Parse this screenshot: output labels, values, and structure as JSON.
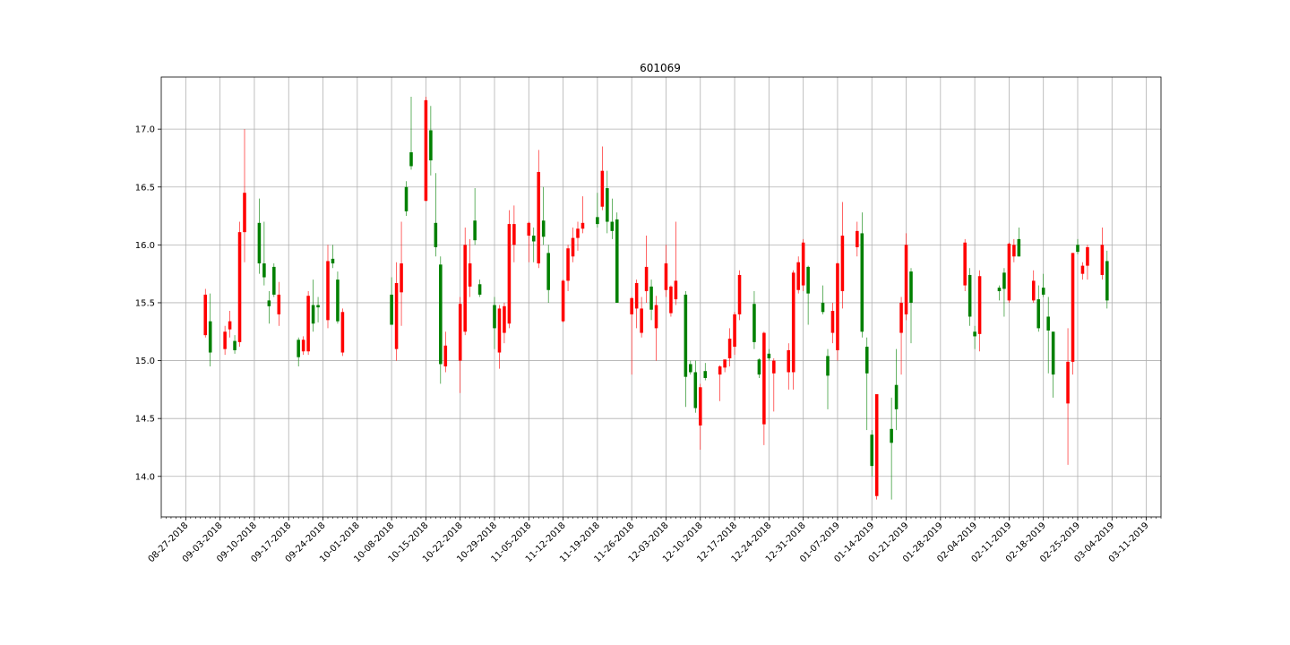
{
  "chart_data": {
    "type": "candlestick",
    "title": "601069",
    "xlabel": "",
    "ylabel": "",
    "grid": true,
    "legend": "none",
    "colors": {
      "up": "#ff0000",
      "down": "#008000",
      "grid": "#b0b0b0",
      "axis": "#000000"
    },
    "xlim": [
      "2018-08-22",
      "2019-03-14"
    ],
    "ylim": [
      13.65,
      17.45
    ],
    "y_ticks": [
      14.0,
      14.5,
      15.0,
      15.5,
      16.0,
      16.5,
      17.0
    ],
    "y_tick_labels": [
      "14.0",
      "14.5",
      "15.0",
      "15.5",
      "16.0",
      "16.5",
      "17.0"
    ],
    "x_ticks": [
      "2018-08-27",
      "2018-09-03",
      "2018-09-10",
      "2018-09-17",
      "2018-09-24",
      "2018-10-01",
      "2018-10-08",
      "2018-10-15",
      "2018-10-22",
      "2018-10-29",
      "2018-11-05",
      "2018-11-12",
      "2018-11-19",
      "2018-11-26",
      "2018-12-03",
      "2018-12-10",
      "2018-12-17",
      "2018-12-24",
      "2018-12-31",
      "2019-01-07",
      "2019-01-14",
      "2019-01-21",
      "2019-01-28",
      "2019-02-04",
      "2019-02-11",
      "2019-02-18",
      "2019-02-25",
      "2019-03-04",
      "2019-03-11"
    ],
    "x_tick_labels": [
      "08-27-2018",
      "09-03-2018",
      "09-10-2018",
      "09-17-2018",
      "09-24-2018",
      "10-01-2018",
      "10-08-2018",
      "10-15-2018",
      "10-22-2018",
      "10-29-2018",
      "11-05-2018",
      "11-12-2018",
      "11-19-2018",
      "11-26-2018",
      "12-03-2018",
      "12-10-2018",
      "12-17-2018",
      "12-24-2018",
      "12-31-2018",
      "01-07-2019",
      "01-14-2019",
      "01-21-2019",
      "01-28-2019",
      "02-04-2019",
      "02-11-2019",
      "02-18-2019",
      "02-25-2019",
      "03-04-2019",
      "03-11-2019"
    ],
    "candles": [
      {
        "date": "2018-08-31",
        "open": 15.22,
        "high": 15.62,
        "low": 15.2,
        "close": 15.57
      },
      {
        "date": "2018-09-01",
        "open": 15.34,
        "high": 15.58,
        "low": 14.95,
        "close": 15.07
      },
      {
        "date": "2018-09-04",
        "open": 15.1,
        "high": 15.3,
        "low": 15.05,
        "close": 15.25
      },
      {
        "date": "2018-09-05",
        "open": 15.27,
        "high": 15.43,
        "low": 15.2,
        "close": 15.34
      },
      {
        "date": "2018-09-06",
        "open": 15.17,
        "high": 15.22,
        "low": 15.06,
        "close": 15.09
      },
      {
        "date": "2018-09-07",
        "open": 15.16,
        "high": 16.2,
        "low": 15.12,
        "close": 16.11
      },
      {
        "date": "2018-09-08",
        "open": 16.11,
        "high": 17.0,
        "low": 15.85,
        "close": 16.45
      },
      {
        "date": "2018-09-11",
        "open": 16.19,
        "high": 16.4,
        "low": 15.75,
        "close": 15.84
      },
      {
        "date": "2018-09-12",
        "open": 15.84,
        "high": 16.2,
        "low": 15.65,
        "close": 15.72
      },
      {
        "date": "2018-09-13",
        "open": 15.52,
        "high": 15.6,
        "low": 15.32,
        "close": 15.47
      },
      {
        "date": "2018-09-14",
        "open": 15.81,
        "high": 15.84,
        "low": 15.55,
        "close": 15.57
      },
      {
        "date": "2018-09-15",
        "open": 15.4,
        "high": 15.68,
        "low": 15.3,
        "close": 15.57
      },
      {
        "date": "2018-09-19",
        "open": 15.18,
        "high": 15.2,
        "low": 14.95,
        "close": 15.03
      },
      {
        "date": "2018-09-20",
        "open": 15.08,
        "high": 15.21,
        "low": 15.05,
        "close": 15.18
      },
      {
        "date": "2018-09-21",
        "open": 15.08,
        "high": 15.6,
        "low": 15.05,
        "close": 15.56
      },
      {
        "date": "2018-09-22",
        "open": 15.48,
        "high": 15.7,
        "low": 15.25,
        "close": 15.32
      },
      {
        "date": "2018-09-23",
        "open": 15.48,
        "high": 15.55,
        "low": 15.33,
        "close": 15.46
      },
      {
        "date": "2018-09-25",
        "open": 15.35,
        "high": 16.0,
        "low": 15.28,
        "close": 15.86
      },
      {
        "date": "2018-09-26",
        "open": 15.88,
        "high": 16.0,
        "low": 15.8,
        "close": 15.84
      },
      {
        "date": "2018-09-27",
        "open": 15.7,
        "high": 15.77,
        "low": 15.32,
        "close": 15.34
      },
      {
        "date": "2018-09-28",
        "open": 15.07,
        "high": 15.45,
        "low": 15.04,
        "close": 15.42
      },
      {
        "date": "2018-10-08",
        "open": 15.57,
        "high": 15.72,
        "low": 15.31,
        "close": 15.31
      },
      {
        "date": "2018-10-09",
        "open": 15.1,
        "high": 15.85,
        "low": 15.0,
        "close": 15.67
      },
      {
        "date": "2018-10-10",
        "open": 15.59,
        "high": 16.2,
        "low": 15.3,
        "close": 15.84
      },
      {
        "date": "2018-10-11",
        "open": 16.5,
        "high": 16.55,
        "low": 16.25,
        "close": 16.29
      },
      {
        "date": "2018-10-12",
        "open": 16.8,
        "high": 17.28,
        "low": 16.65,
        "close": 16.68
      },
      {
        "date": "2018-10-15",
        "open": 16.38,
        "high": 17.28,
        "low": 16.38,
        "close": 17.25
      },
      {
        "date": "2018-10-16",
        "open": 16.99,
        "high": 17.2,
        "low": 16.6,
        "close": 16.73
      },
      {
        "date": "2018-10-17",
        "open": 16.19,
        "high": 16.62,
        "low": 15.9,
        "close": 15.98
      },
      {
        "date": "2018-10-18",
        "open": 15.83,
        "high": 15.9,
        "low": 14.8,
        "close": 14.97
      },
      {
        "date": "2018-10-19",
        "open": 14.95,
        "high": 15.25,
        "low": 14.9,
        "close": 15.13
      },
      {
        "date": "2018-10-22",
        "open": 15.0,
        "high": 15.55,
        "low": 14.72,
        "close": 15.49
      },
      {
        "date": "2018-10-23",
        "open": 15.25,
        "high": 16.15,
        "low": 15.22,
        "close": 16.0
      },
      {
        "date": "2018-10-24",
        "open": 15.64,
        "high": 16.05,
        "low": 15.55,
        "close": 15.84
      },
      {
        "date": "2018-10-25",
        "open": 16.21,
        "high": 16.49,
        "low": 16.0,
        "close": 16.04
      },
      {
        "date": "2018-10-26",
        "open": 15.66,
        "high": 15.7,
        "low": 15.55,
        "close": 15.57
      },
      {
        "date": "2018-10-29",
        "open": 15.48,
        "high": 15.55,
        "low": 15.1,
        "close": 15.28
      },
      {
        "date": "2018-10-30",
        "open": 15.07,
        "high": 15.48,
        "low": 14.93,
        "close": 15.45
      },
      {
        "date": "2018-10-31",
        "open": 15.24,
        "high": 15.5,
        "low": 15.15,
        "close": 15.47
      },
      {
        "date": "2018-11-01",
        "open": 15.32,
        "high": 16.3,
        "low": 15.28,
        "close": 16.18
      },
      {
        "date": "2018-11-02",
        "open": 16.0,
        "high": 16.34,
        "low": 15.85,
        "close": 16.18
      },
      {
        "date": "2018-11-05",
        "open": 16.08,
        "high": 16.2,
        "low": 15.85,
        "close": 16.19
      },
      {
        "date": "2018-11-06",
        "open": 16.08,
        "high": 16.15,
        "low": 15.85,
        "close": 16.03
      },
      {
        "date": "2018-11-07",
        "open": 15.84,
        "high": 16.82,
        "low": 15.8,
        "close": 16.63
      },
      {
        "date": "2018-11-08",
        "open": 16.21,
        "high": 16.5,
        "low": 16.0,
        "close": 16.07
      },
      {
        "date": "2018-11-09",
        "open": 15.93,
        "high": 16.0,
        "low": 15.5,
        "close": 15.61
      },
      {
        "date": "2018-11-12",
        "open": 15.34,
        "high": 15.7,
        "low": 15.33,
        "close": 15.69
      },
      {
        "date": "2018-11-13",
        "open": 15.69,
        "high": 16.0,
        "low": 15.6,
        "close": 15.97
      },
      {
        "date": "2018-11-14",
        "open": 15.9,
        "high": 16.15,
        "low": 15.85,
        "close": 16.06
      },
      {
        "date": "2018-11-15",
        "open": 16.06,
        "high": 16.2,
        "low": 15.95,
        "close": 16.14
      },
      {
        "date": "2018-11-16",
        "open": 16.14,
        "high": 16.42,
        "low": 16.1,
        "close": 16.19
      },
      {
        "date": "2018-11-19",
        "open": 16.24,
        "high": 16.45,
        "low": 16.15,
        "close": 16.18
      },
      {
        "date": "2018-11-20",
        "open": 16.33,
        "high": 16.85,
        "low": 16.3,
        "close": 16.64
      },
      {
        "date": "2018-11-21",
        "open": 16.49,
        "high": 16.64,
        "low": 16.1,
        "close": 16.2
      },
      {
        "date": "2018-11-22",
        "open": 16.2,
        "high": 16.4,
        "low": 16.05,
        "close": 16.12
      },
      {
        "date": "2018-11-23",
        "open": 16.22,
        "high": 16.28,
        "low": 15.5,
        "close": 15.5
      },
      {
        "date": "2018-11-26",
        "open": 15.4,
        "high": 15.55,
        "low": 14.88,
        "close": 15.54
      },
      {
        "date": "2018-11-27",
        "open": 15.45,
        "high": 15.7,
        "low": 15.28,
        "close": 15.67
      },
      {
        "date": "2018-11-28",
        "open": 15.24,
        "high": 15.55,
        "low": 15.2,
        "close": 15.45
      },
      {
        "date": "2018-11-29",
        "open": 15.6,
        "high": 16.08,
        "low": 15.5,
        "close": 15.81
      },
      {
        "date": "2018-11-30",
        "open": 15.64,
        "high": 15.7,
        "low": 15.35,
        "close": 15.44
      },
      {
        "date": "2018-12-01",
        "open": 15.28,
        "high": 15.56,
        "low": 15.0,
        "close": 15.48
      },
      {
        "date": "2018-12-03",
        "open": 15.61,
        "high": 16.0,
        "low": 15.55,
        "close": 15.84
      },
      {
        "date": "2018-12-04",
        "open": 15.41,
        "high": 15.65,
        "low": 15.38,
        "close": 15.64
      },
      {
        "date": "2018-12-05",
        "open": 15.53,
        "high": 16.2,
        "low": 15.48,
        "close": 15.69
      },
      {
        "date": "2018-12-07",
        "open": 15.57,
        "high": 15.6,
        "low": 14.6,
        "close": 14.86
      },
      {
        "date": "2018-12-08",
        "open": 14.97,
        "high": 15.0,
        "low": 14.88,
        "close": 14.9
      },
      {
        "date": "2018-12-09",
        "open": 14.9,
        "high": 15.0,
        "low": 14.55,
        "close": 14.59
      },
      {
        "date": "2018-12-10",
        "open": 14.44,
        "high": 14.8,
        "low": 14.23,
        "close": 14.77
      },
      {
        "date": "2018-12-11",
        "open": 14.91,
        "high": 14.98,
        "low": 14.83,
        "close": 14.85
      },
      {
        "date": "2018-12-14",
        "open": 14.88,
        "high": 14.96,
        "low": 14.65,
        "close": 14.95
      },
      {
        "date": "2018-12-15",
        "open": 14.94,
        "high": 15.0,
        "low": 14.9,
        "close": 15.01
      },
      {
        "date": "2018-12-16",
        "open": 15.02,
        "high": 15.28,
        "low": 14.95,
        "close": 15.19
      },
      {
        "date": "2018-12-17",
        "open": 15.12,
        "high": 15.42,
        "low": 15.05,
        "close": 15.4
      },
      {
        "date": "2018-12-18",
        "open": 15.4,
        "high": 15.78,
        "low": 15.35,
        "close": 15.74
      },
      {
        "date": "2018-12-21",
        "open": 15.49,
        "high": 15.6,
        "low": 15.1,
        "close": 15.16
      },
      {
        "date": "2018-12-22",
        "open": 15.01,
        "high": 15.02,
        "low": 14.85,
        "close": 14.88
      },
      {
        "date": "2018-12-23",
        "open": 14.45,
        "high": 15.25,
        "low": 14.27,
        "close": 15.24
      },
      {
        "date": "2018-12-24",
        "open": 15.06,
        "high": 15.1,
        "low": 15.0,
        "close": 15.02
      },
      {
        "date": "2018-12-25",
        "open": 14.89,
        "high": 15.02,
        "low": 14.56,
        "close": 15.0
      },
      {
        "date": "2018-12-28",
        "open": 14.9,
        "high": 15.15,
        "low": 14.75,
        "close": 15.09
      },
      {
        "date": "2018-12-29",
        "open": 14.9,
        "high": 15.78,
        "low": 14.75,
        "close": 15.76
      },
      {
        "date": "2018-12-30",
        "open": 15.61,
        "high": 15.9,
        "low": 15.58,
        "close": 15.85
      },
      {
        "date": "2018-12-31",
        "open": 15.65,
        "high": 16.05,
        "low": 15.6,
        "close": 16.02
      },
      {
        "date": "2019-01-01",
        "open": 15.81,
        "high": 15.82,
        "low": 15.31,
        "close": 15.58
      },
      {
        "date": "2019-01-04",
        "open": 15.5,
        "high": 15.65,
        "low": 15.4,
        "close": 15.42
      },
      {
        "date": "2019-01-05",
        "open": 15.04,
        "high": 15.1,
        "low": 14.58,
        "close": 14.87
      },
      {
        "date": "2019-01-06",
        "open": 15.24,
        "high": 15.5,
        "low": 15.15,
        "close": 15.43
      },
      {
        "date": "2019-01-07",
        "open": 15.09,
        "high": 15.85,
        "low": 15.0,
        "close": 15.84
      },
      {
        "date": "2019-01-08",
        "open": 15.6,
        "high": 16.37,
        "low": 15.45,
        "close": 16.08
      },
      {
        "date": "2019-01-11",
        "open": 15.98,
        "high": 16.2,
        "low": 15.9,
        "close": 16.12
      },
      {
        "date": "2019-01-12",
        "open": 16.1,
        "high": 16.28,
        "low": 15.2,
        "close": 15.25
      },
      {
        "date": "2019-01-13",
        "open": 15.12,
        "high": 15.2,
        "low": 14.4,
        "close": 14.89
      },
      {
        "date": "2019-01-14",
        "open": 14.36,
        "high": 14.4,
        "low": 14.0,
        "close": 14.09
      },
      {
        "date": "2019-01-15",
        "open": 13.83,
        "high": 14.7,
        "low": 13.8,
        "close": 14.71
      },
      {
        "date": "2019-01-18",
        "open": 14.41,
        "high": 14.68,
        "low": 13.8,
        "close": 14.29
      },
      {
        "date": "2019-01-19",
        "open": 14.79,
        "high": 15.1,
        "low": 14.4,
        "close": 14.58
      },
      {
        "date": "2019-01-20",
        "open": 15.24,
        "high": 15.55,
        "low": 14.88,
        "close": 15.5
      },
      {
        "date": "2019-01-21",
        "open": 15.4,
        "high": 16.1,
        "low": 15.35,
        "close": 16.0
      },
      {
        "date": "2019-01-22",
        "open": 15.77,
        "high": 15.8,
        "low": 15.15,
        "close": 15.5
      },
      {
        "date": "2019-02-02",
        "open": 15.65,
        "high": 16.05,
        "low": 15.6,
        "close": 16.02
      },
      {
        "date": "2019-02-03",
        "open": 15.74,
        "high": 15.8,
        "low": 15.3,
        "close": 15.38
      },
      {
        "date": "2019-02-04",
        "open": 15.25,
        "high": 15.3,
        "low": 15.1,
        "close": 15.21
      },
      {
        "date": "2019-02-05",
        "open": 15.23,
        "high": 15.78,
        "low": 15.08,
        "close": 15.73
      },
      {
        "date": "2019-02-09",
        "open": 15.63,
        "high": 15.65,
        "low": 15.52,
        "close": 15.6
      },
      {
        "date": "2019-02-10",
        "open": 15.76,
        "high": 15.8,
        "low": 15.38,
        "close": 15.62
      },
      {
        "date": "2019-02-11",
        "open": 15.52,
        "high": 16.02,
        "low": 15.5,
        "close": 16.01
      },
      {
        "date": "2019-02-12",
        "open": 15.9,
        "high": 16.05,
        "low": 15.85,
        "close": 16.0
      },
      {
        "date": "2019-02-13",
        "open": 16.05,
        "high": 16.15,
        "low": 15.9,
        "close": 15.9
      },
      {
        "date": "2019-02-16",
        "open": 15.52,
        "high": 15.78,
        "low": 15.5,
        "close": 15.69
      },
      {
        "date": "2019-02-17",
        "open": 15.53,
        "high": 15.65,
        "low": 15.25,
        "close": 15.28
      },
      {
        "date": "2019-02-18",
        "open": 15.63,
        "high": 15.75,
        "low": 15.55,
        "close": 15.57
      },
      {
        "date": "2019-02-19",
        "open": 15.38,
        "high": 15.55,
        "low": 14.89,
        "close": 15.26
      },
      {
        "date": "2019-02-20",
        "open": 15.25,
        "high": 15.25,
        "low": 14.68,
        "close": 14.88
      },
      {
        "date": "2019-02-23",
        "open": 14.63,
        "high": 15.28,
        "low": 14.1,
        "close": 14.99
      },
      {
        "date": "2019-02-24",
        "open": 14.99,
        "high": 15.93,
        "low": 14.88,
        "close": 15.93
      },
      {
        "date": "2019-02-25",
        "open": 16.0,
        "high": 16.05,
        "low": 15.92,
        "close": 15.94
      },
      {
        "date": "2019-02-26",
        "open": 15.75,
        "high": 15.85,
        "low": 15.7,
        "close": 15.82
      },
      {
        "date": "2019-02-27",
        "open": 15.82,
        "high": 16.0,
        "low": 15.7,
        "close": 15.98
      },
      {
        "date": "2019-03-02",
        "open": 15.74,
        "high": 16.15,
        "low": 15.7,
        "close": 16.0
      },
      {
        "date": "2019-03-03",
        "open": 15.86,
        "high": 15.95,
        "low": 15.45,
        "close": 15.52
      }
    ]
  }
}
